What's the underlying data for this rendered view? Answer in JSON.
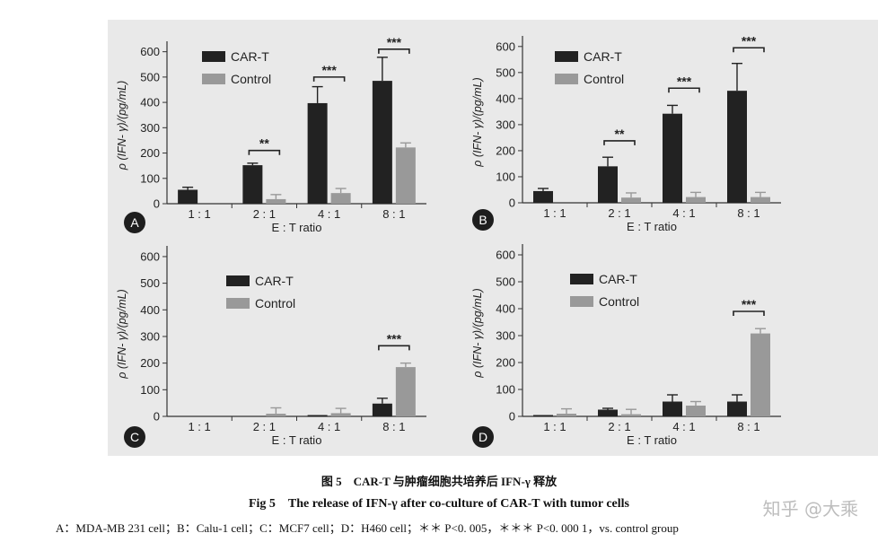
{
  "chart_data": [
    {
      "type": "bar",
      "panel_letter": "A",
      "categories": [
        "1 : 1",
        "2 : 1",
        "4 : 1",
        "8 : 1"
      ],
      "series": [
        {
          "name": "CAR-T",
          "values": [
            55,
            152,
            397,
            485
          ],
          "errors": [
            10,
            8,
            65,
            93
          ],
          "color": "#222222"
        },
        {
          "name": "Control",
          "values": [
            0,
            18,
            42,
            222
          ],
          "errors": [
            0,
            18,
            18,
            18
          ],
          "color": "#999999"
        }
      ],
      "ylabel": "ρ (IFN- γ)/(pg/mL)",
      "xlabel": "E : T ratio",
      "yticks": [
        0,
        100,
        200,
        300,
        400,
        500,
        600
      ],
      "ylim": [
        0,
        620
      ],
      "significance": [
        {
          "category": 1,
          "label": "**",
          "height": 210
        },
        {
          "category": 2,
          "label": "***",
          "height": 500
        },
        {
          "category": 3,
          "label": "***",
          "height": 610
        }
      ],
      "legend": "top-left"
    },
    {
      "type": "bar",
      "panel_letter": "B",
      "categories": [
        "1 : 1",
        "2 : 1",
        "4 : 1",
        "8 : 1"
      ],
      "series": [
        {
          "name": "CAR-T",
          "values": [
            45,
            140,
            342,
            430
          ],
          "errors": [
            10,
            35,
            32,
            105
          ],
          "color": "#222222"
        },
        {
          "name": "Control",
          "values": [
            0,
            20,
            22,
            22
          ],
          "errors": [
            0,
            18,
            18,
            18
          ],
          "color": "#999999"
        }
      ],
      "ylabel": "ρ (IFN- γ)/(pg/mL)",
      "xlabel": "E : T ratio",
      "yticks": [
        0,
        100,
        200,
        300,
        400,
        500,
        600
      ],
      "ylim": [
        0,
        620
      ],
      "significance": [
        {
          "category": 1,
          "label": "**",
          "height": 238
        },
        {
          "category": 2,
          "label": "***",
          "height": 440
        },
        {
          "category": 3,
          "label": "***",
          "height": 595
        }
      ],
      "legend": "top-left"
    },
    {
      "type": "bar",
      "panel_letter": "C",
      "categories": [
        "1 : 1",
        "2 : 1",
        "4 : 1",
        "8 : 1"
      ],
      "series": [
        {
          "name": "CAR-T",
          "values": [
            0,
            0,
            5,
            48
          ],
          "errors": [
            0,
            0,
            0,
            20
          ],
          "color": "#222222"
        },
        {
          "name": "Control",
          "values": [
            0,
            10,
            12,
            185
          ],
          "errors": [
            0,
            22,
            18,
            15
          ],
          "color": "#999999"
        }
      ],
      "ylabel": "ρ (IFN- γ)/(pg/mL)",
      "xlabel": "E : T ratio",
      "yticks": [
        0,
        100,
        200,
        300,
        400,
        500,
        600
      ],
      "ylim": [
        0,
        620
      ],
      "significance": [
        {
          "category": 3,
          "label": "***",
          "height": 265
        }
      ],
      "legend": "top-center"
    },
    {
      "type": "bar",
      "panel_letter": "D",
      "categories": [
        "1 : 1",
        "2 : 1",
        "4 : 1",
        "8 : 1"
      ],
      "series": [
        {
          "name": "CAR-T",
          "values": [
            5,
            25,
            55,
            55
          ],
          "errors": [
            0,
            5,
            25,
            25
          ],
          "color": "#222222"
        },
        {
          "name": "Control",
          "values": [
            10,
            8,
            40,
            308
          ],
          "errors": [
            18,
            18,
            15,
            18
          ],
          "color": "#999999"
        }
      ],
      "ylabel": "ρ (IFN- γ)/(pg/mL)",
      "xlabel": "E : T ratio",
      "yticks": [
        0,
        100,
        200,
        300,
        400,
        500,
        600
      ],
      "ylim": [
        0,
        620
      ],
      "significance": [
        {
          "category": 3,
          "label": "***",
          "height": 390
        }
      ],
      "legend": "top-center"
    }
  ],
  "caption": {
    "cn": "图 5　CAR-T 与肿瘤细胞共培养后 IFN-γ 释放",
    "en": "Fig 5　The release of IFN-γ after co-culture of CAR-T with tumor cells",
    "note": "A：MDA-MB 231 cell；B：Calu-1 cell；C：MCF7 cell；D：H460 cell；＊＊ P<0. 005，＊＊＊ P<0. 000 1，vs. control group"
  },
  "watermark": "知乎 @大乘"
}
